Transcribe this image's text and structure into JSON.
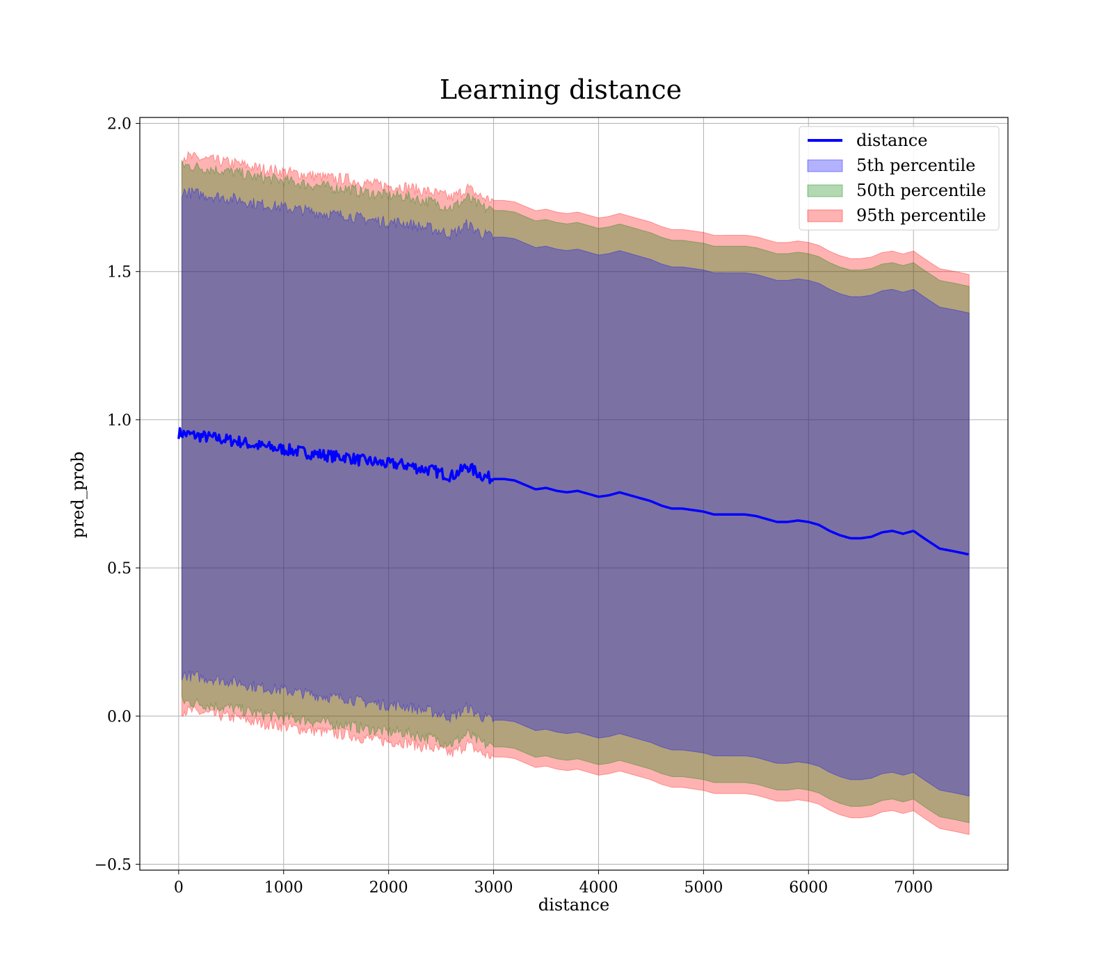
{
  "chart_data": {
    "type": "line",
    "title": "Learning distance",
    "xlabel": "distance",
    "ylabel": "pred_prob",
    "xlim": [
      -370,
      7900
    ],
    "ylim": [
      -0.52,
      2.02
    ],
    "xticks": [
      0,
      1000,
      2000,
      3000,
      4000,
      5000,
      6000,
      7000
    ],
    "yticks": [
      -0.5,
      0.0,
      0.5,
      1.0,
      1.5,
      2.0
    ],
    "xtick_labels": [
      "0",
      "1000",
      "2000",
      "3000",
      "4000",
      "5000",
      "6000",
      "7000"
    ],
    "ytick_labels": [
      "−0.5",
      "0.0",
      "0.5",
      "1.0",
      "1.5",
      "2.0"
    ],
    "grid": true,
    "legend_position": "top-right",
    "line": {
      "name": "distance",
      "color": "#0000ff",
      "x": [
        0,
        100,
        200,
        300,
        400,
        500,
        600,
        700,
        800,
        900,
        1000,
        1100,
        1200,
        1300,
        1400,
        1500,
        1600,
        1700,
        1800,
        1900,
        2000,
        2100,
        2200,
        2300,
        2400,
        2500,
        2600,
        2700,
        2750,
        2800,
        2900,
        3000,
        3100,
        3200,
        3300,
        3400,
        3500,
        3600,
        3700,
        3800,
        3900,
        4000,
        4100,
        4200,
        4300,
        4400,
        4500,
        4600,
        4700,
        4800,
        4900,
        5000,
        5100,
        5200,
        5300,
        5400,
        5500,
        5600,
        5700,
        5800,
        5900,
        6000,
        6100,
        6200,
        6300,
        6400,
        6500,
        6600,
        6700,
        6800,
        6900,
        7000,
        7100,
        7250,
        7400,
        7530
      ],
      "y": [
        0.955,
        0.95,
        0.945,
        0.94,
        0.935,
        0.93,
        0.925,
        0.915,
        0.91,
        0.905,
        0.9,
        0.895,
        0.89,
        0.885,
        0.88,
        0.875,
        0.875,
        0.865,
        0.86,
        0.855,
        0.85,
        0.85,
        0.845,
        0.835,
        0.83,
        0.82,
        0.81,
        0.83,
        0.845,
        0.83,
        0.81,
        0.8,
        0.8,
        0.795,
        0.78,
        0.765,
        0.77,
        0.76,
        0.755,
        0.76,
        0.75,
        0.74,
        0.745,
        0.755,
        0.745,
        0.735,
        0.725,
        0.71,
        0.7,
        0.7,
        0.695,
        0.69,
        0.68,
        0.68,
        0.68,
        0.68,
        0.675,
        0.665,
        0.655,
        0.655,
        0.66,
        0.655,
        0.645,
        0.625,
        0.61,
        0.6,
        0.6,
        0.605,
        0.62,
        0.625,
        0.615,
        0.625,
        0.6,
        0.565,
        0.555,
        0.545
      ],
      "noise_until_x": 3000,
      "noise_amplitude": 0.02
    },
    "bands": [
      {
        "name": "95th percentile",
        "color": "#ff0000",
        "alpha": 0.3,
        "x": [
          30,
          7530
        ],
        "lower": [
          0.02,
          -0.4
        ],
        "upper": [
          1.89,
          1.49
        ]
      },
      {
        "name": "50th percentile",
        "color": "#008000",
        "alpha": 0.3,
        "x": [
          30,
          7530
        ],
        "lower": [
          0.05,
          -0.36
        ],
        "upper": [
          1.86,
          1.45
        ]
      },
      {
        "name": "5th percentile",
        "color": "#0000ff",
        "alpha": 0.3,
        "x": [
          30,
          7530
        ],
        "lower": [
          0.14,
          -0.27
        ],
        "upper": [
          1.77,
          1.36
        ]
      }
    ],
    "legend": [
      {
        "kind": "line",
        "label": "distance",
        "color": "#0000ff"
      },
      {
        "kind": "patch",
        "label": "5th percentile",
        "color": "#0000ff",
        "alpha": 0.3
      },
      {
        "kind": "patch",
        "label": "50th percentile",
        "color": "#008000",
        "alpha": 0.3
      },
      {
        "kind": "patch",
        "label": "95th percentile",
        "color": "#ff0000",
        "alpha": 0.3
      }
    ]
  }
}
